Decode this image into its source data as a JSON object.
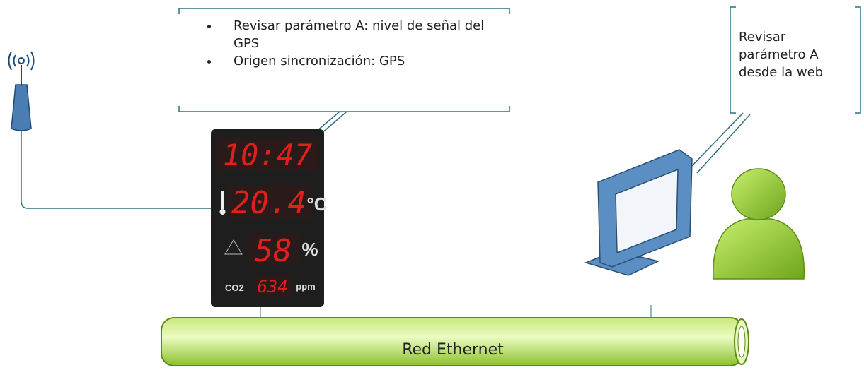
{
  "left_callout": {
    "bullets": [
      "Revisar parámetro A: nivel de señal del GPS",
      "Origen sincronización: GPS"
    ]
  },
  "right_callout": {
    "text": "Revisar parámetro A desde la web"
  },
  "display": {
    "time": "10:47",
    "temperature": "20.4",
    "temperature_unit": "°C",
    "humidity": "58",
    "humidity_unit": "%",
    "co2_label": "CO2",
    "co2": "634",
    "co2_unit": "ppm"
  },
  "network": {
    "label": "Red Ethernet"
  }
}
